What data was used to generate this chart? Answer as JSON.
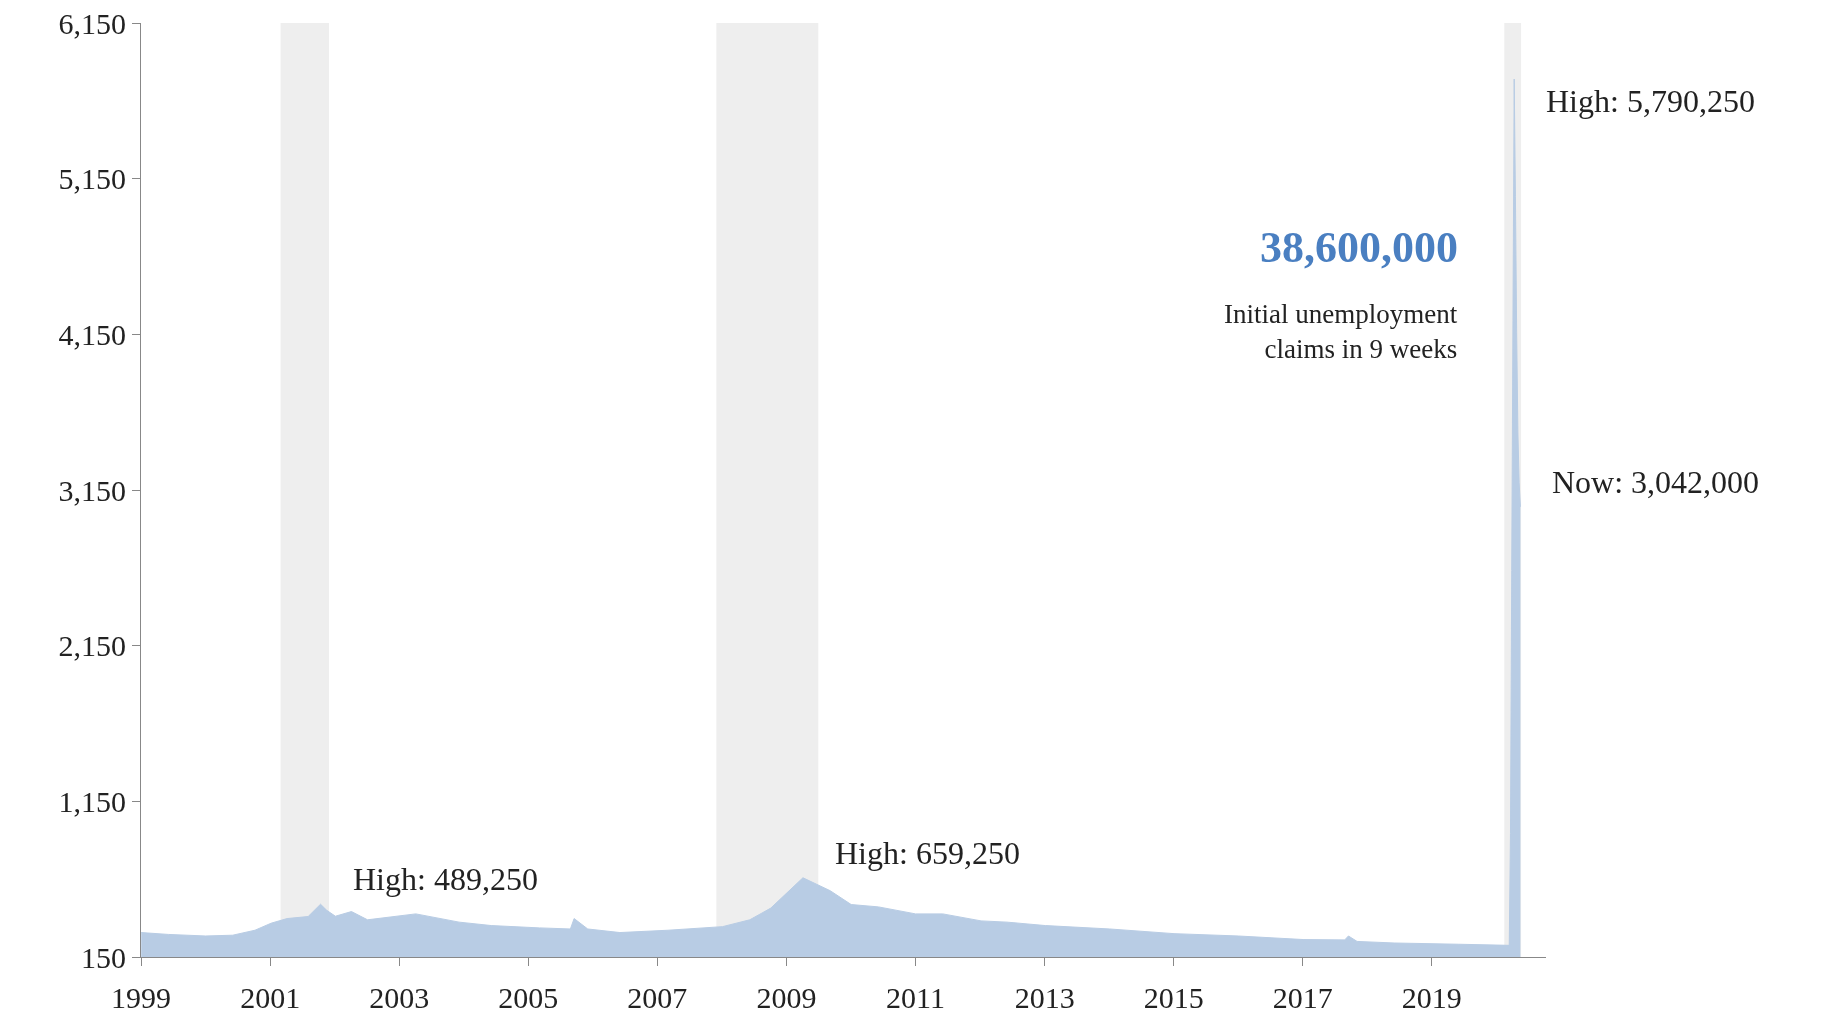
{
  "chart_data": {
    "type": "area",
    "x": [
      "1999-01-02",
      "1999-06-05",
      "2000-01-01",
      "2000-06-03",
      "2000-10-07",
      "2001-01-06",
      "2001-04-07",
      "2001-08-04",
      "2001-10-13",
      "2001-11-17",
      "2002-01-05",
      "2002-04-06",
      "2002-07-06",
      "2003-04-05",
      "2003-12-06",
      "2004-06-05",
      "2005-03-05",
      "2005-08-27",
      "2005-09-17",
      "2005-12-03",
      "2006-06-03",
      "2007-03-03",
      "2008-01-05",
      "2008-06-07",
      "2008-10-04",
      "2009-04-04",
      "2009-09-05",
      "2010-01-02",
      "2010-06-05",
      "2011-01-01",
      "2011-06-04",
      "2012-01-07",
      "2012-06-02",
      "2013-01-05",
      "2014-01-04",
      "2015-01-03",
      "2016-01-02",
      "2017-01-07",
      "2017-08-26",
      "2017-09-16",
      "2017-11-04",
      "2018-06-02",
      "2019-06-01",
      "2020-03-14",
      "2020-03-21",
      "2020-03-28",
      "2020-04-04",
      "2020-04-11",
      "2020-04-18",
      "2020-04-25",
      "2020-05-02",
      "2020-05-09",
      "2020-05-16"
    ],
    "series": [
      {
        "color": "#b8cce4",
        "values": [
          307,
          295,
          285,
          290,
          322,
          367,
          397,
          410,
          489,
          450,
          412,
          442,
          389,
          427,
          374,
          352,
          337,
          330,
          397,
          330,
          307,
          322,
          345,
          389,
          464,
          659,
          576,
          487,
          472,
          427,
          427,
          382,
          374,
          352,
          330,
          300,
          285,
          262,
          260,
          285,
          250,
          240,
          232,
          225,
          943,
          2633,
          4240,
          5790,
          5034,
          4160,
          3516,
          3200,
          3042
        ]
      }
    ],
    "xlim": [
      "1999-01-01",
      "2020-10-08"
    ],
    "xticks": [
      {
        "value": "1999-01-01",
        "label": "1999"
      },
      {
        "value": "2001-01-01",
        "label": "2001"
      },
      {
        "value": "2003-01-01",
        "label": "2003"
      },
      {
        "value": "2005-01-01",
        "label": "2005"
      },
      {
        "value": "2007-01-01",
        "label": "2007"
      },
      {
        "value": "2009-01-01",
        "label": "2009"
      },
      {
        "value": "2011-01-01",
        "label": "2011"
      },
      {
        "value": "2013-01-01",
        "label": "2013"
      },
      {
        "value": "2015-01-01",
        "label": "2015"
      },
      {
        "value": "2017-01-01",
        "label": "2017"
      },
      {
        "value": "2019-01-01",
        "label": "2019"
      }
    ],
    "ylim": [
      150,
      6150
    ],
    "yticks": [
      150,
      {
        "value": 1150,
        "label": "1,150"
      },
      {
        "value": 2150,
        "label": "2,150"
      },
      {
        "value": 3150,
        "label": "3,150"
      },
      {
        "value": 4150,
        "label": "4,150"
      },
      {
        "value": 5150,
        "label": "5,150"
      },
      {
        "value": 6150,
        "label": "6,150"
      }
    ],
    "bands": [
      {
        "axis": "x",
        "from": "2001-03-01",
        "to": "2001-11-30",
        "color": "#eeeeee"
      },
      {
        "axis": "x",
        "from": "2007-12-01",
        "to": "2009-06-30",
        "color": "#eeeeee"
      },
      {
        "axis": "x",
        "from": "2020-02-15",
        "to": "2020-05-20",
        "color": "#eeeeee"
      }
    ],
    "annotations": [
      "38,600,000",
      "Initial unemployment\nclaims in 9 weeks",
      {
        "text": "High: 489,250",
        "x": "2001-10-13",
        "y": 489
      },
      {
        "text": "High: 659,250",
        "x": "2009-04-04",
        "y": 659
      },
      {
        "text": "High: 5,790,250",
        "x": "2020-04-11",
        "y": 5790
      },
      {
        "text": "Now: 3,042,000",
        "x": "2020-05-16",
        "y": 3042
      }
    ],
    "grid": false
  }
}
